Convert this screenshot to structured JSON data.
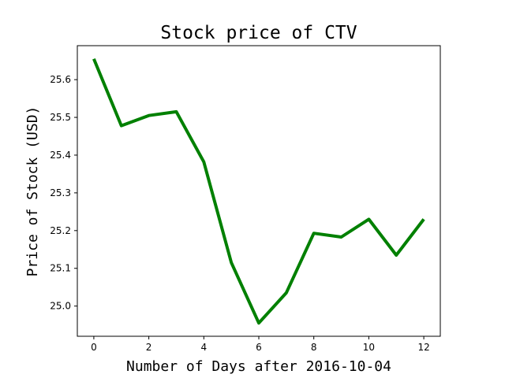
{
  "chart_data": {
    "type": "line",
    "title": "Stock price of CTV",
    "xlabel": "Number of Days after 2016-10-04",
    "ylabel": "Price of Stock (USD)",
    "xlim": [
      -0.6,
      12.6
    ],
    "ylim": [
      24.92,
      25.69
    ],
    "xticks": [
      0,
      2,
      4,
      6,
      8,
      10,
      12
    ],
    "xtick_labels": [
      "0",
      "2",
      "4",
      "6",
      "8",
      "10",
      "12"
    ],
    "yticks": [
      25.0,
      25.1,
      25.2,
      25.3,
      25.4,
      25.5,
      25.6
    ],
    "ytick_labels": [
      "25.0",
      "25.1",
      "25.2",
      "25.3",
      "25.4",
      "25.5",
      "25.6"
    ],
    "grid": false,
    "series": [
      {
        "color": "#008000",
        "x": [
          0,
          1,
          2,
          3,
          4,
          5,
          6,
          7,
          8,
          9,
          10,
          11,
          12
        ],
        "y": [
          25.655,
          25.478,
          25.505,
          25.515,
          25.382,
          25.115,
          24.955,
          25.035,
          25.193,
          25.183,
          25.23,
          25.135,
          25.23
        ]
      }
    ]
  }
}
